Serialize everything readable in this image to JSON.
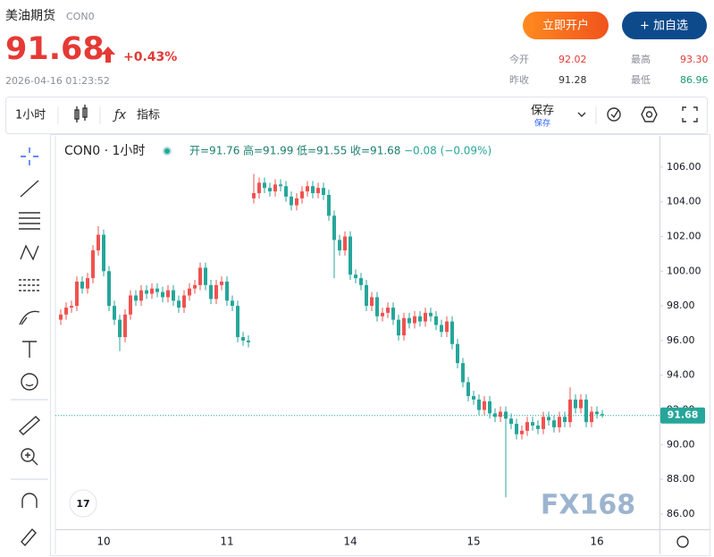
{
  "header": {
    "name": "美油期货",
    "code": "CON0",
    "price": "91.68",
    "change": "+0.43%",
    "time": "2026-04-16 01:23:52",
    "buttons": [
      "立即开户",
      "+ 加自选"
    ],
    "stats": [
      {
        "label": "今开",
        "value": "92.02"
      },
      {
        "label": "最高",
        "value": "93.30"
      },
      {
        "label": "昨收",
        "value": "91.28"
      },
      {
        "label": "最低",
        "value": "86.96"
      }
    ]
  },
  "toolbar": {
    "interval": "1小时",
    "indicators": "指标",
    "save": "保存",
    "save_sub": "保存"
  },
  "chart_data": {
    "type": "candlestick",
    "symbol": "CON0 · 1小时",
    "legend": [
      "开=91.76",
      "高=91.99",
      "低=91.55",
      "收=91.68",
      "−0.08 (−0.09%)"
    ],
    "watermark": "FX168",
    "categories": [
      null,
      null,
      null,
      null,
      null,
      null,
      null,
      null,
      "10",
      null,
      null,
      null,
      null,
      null,
      null,
      null,
      null,
      null,
      null,
      null,
      null,
      null,
      null,
      null,
      null,
      null,
      null,
      null,
      null,
      null,
      null,
      "11",
      null,
      null,
      null,
      null,
      null,
      null,
      null,
      null,
      null,
      null,
      null,
      null,
      null,
      null,
      null,
      null,
      null,
      null,
      null,
      null,
      null,
      null,
      "14",
      null,
      null,
      null,
      null,
      null,
      null,
      null,
      null,
      null,
      null,
      null,
      null,
      null,
      null,
      null,
      null,
      null,
      null,
      null,
      null,
      null,
      null,
      "15",
      null,
      null,
      null,
      null,
      null,
      null,
      null,
      null,
      null,
      null,
      null,
      null,
      null,
      null,
      null,
      null,
      null,
      null,
      null,
      null,
      null,
      null,
      "16",
      null
    ],
    "open": [
      97.2,
      97.5,
      97.9,
      98.0,
      99.4,
      99.0,
      99.6,
      101.2,
      102.1,
      100.0,
      98.0,
      97.2,
      96.2,
      97.5,
      98.6,
      98.3,
      98.9,
      98.7,
      99.0,
      98.8,
      98.5,
      98.9,
      98.3,
      97.9,
      98.6,
      99.0,
      99.2,
      100.2,
      99.2,
      98.4,
      99.2,
      99.4,
      98.3,
      98.0,
      96.2,
      96.0,
      104.2,
      104.5,
      105.1,
      104.8,
      104.6,
      105.0,
      104.9,
      104.3,
      103.8,
      104.2,
      104.6,
      104.9,
      104.5,
      104.8,
      104.4,
      103.2,
      101.8,
      101.2,
      102.0,
      99.8,
      99.6,
      99.2,
      98.0,
      98.5,
      97.4,
      97.6,
      97.9,
      97.2,
      96.3,
      97.3,
      97.0,
      97.4,
      97.1,
      97.6,
      97.4,
      96.9,
      96.5,
      97.1,
      95.8,
      94.7,
      93.6,
      92.8,
      92.6,
      92.0,
      92.5,
      91.8,
      91.6,
      91.9,
      91.5,
      91.2,
      90.6,
      90.8,
      91.3,
      91.1,
      90.9,
      91.6,
      91.4,
      91.0,
      91.6,
      91.3,
      92.6,
      92.1,
      92.6,
      91.3,
      91.9,
      91.76
    ],
    "high": [
      97.8,
      98.2,
      98.3,
      99.7,
      99.7,
      99.9,
      101.5,
      102.6,
      102.4,
      100.3,
      98.3,
      97.5,
      97.8,
      98.9,
      98.9,
      99.2,
      99.2,
      99.3,
      99.3,
      99.1,
      99.2,
      99.2,
      98.6,
      98.9,
      99.3,
      99.5,
      100.5,
      100.5,
      99.5,
      99.5,
      99.7,
      99.7,
      98.6,
      98.3,
      96.5,
      96.3,
      105.6,
      105.4,
      105.4,
      105.1,
      105.3,
      105.3,
      105.2,
      104.6,
      104.5,
      104.9,
      105.2,
      105.2,
      105.1,
      105.1,
      104.7,
      103.5,
      102.1,
      102.3,
      102.3,
      100.1,
      99.9,
      99.5,
      98.8,
      98.8,
      97.9,
      98.2,
      98.2,
      97.5,
      97.6,
      97.6,
      97.7,
      97.7,
      97.9,
      97.9,
      97.7,
      97.2,
      97.4,
      97.4,
      96.1,
      95.0,
      93.9,
      93.1,
      92.9,
      92.8,
      92.8,
      92.1,
      92.2,
      92.2,
      91.8,
      91.5,
      91.1,
      91.6,
      91.6,
      91.4,
      91.9,
      91.9,
      91.7,
      91.9,
      91.9,
      93.3,
      92.9,
      92.9,
      92.9,
      92.2,
      92.2,
      91.99
    ],
    "low": [
      96.9,
      97.2,
      97.6,
      97.7,
      98.7,
      98.7,
      99.3,
      100.9,
      99.7,
      97.7,
      96.9,
      95.4,
      95.9,
      97.2,
      98.0,
      98.0,
      98.4,
      98.4,
      98.5,
      98.2,
      98.2,
      98.0,
      97.6,
      97.6,
      98.3,
      98.7,
      98.9,
      98.9,
      98.1,
      98.1,
      98.9,
      98.0,
      97.7,
      95.9,
      95.7,
      95.6,
      103.9,
      104.2,
      104.5,
      104.3,
      104.3,
      104.6,
      104.0,
      103.5,
      103.5,
      103.9,
      104.3,
      104.2,
      104.2,
      104.1,
      102.9,
      99.6,
      100.9,
      100.9,
      99.5,
      99.3,
      98.9,
      97.7,
      97.7,
      97.1,
      97.1,
      97.3,
      96.9,
      96.0,
      96.0,
      96.7,
      96.7,
      96.8,
      96.8,
      97.1,
      96.6,
      96.2,
      96.2,
      95.5,
      94.4,
      93.3,
      92.5,
      92.3,
      91.7,
      91.7,
      91.5,
      91.3,
      91.3,
      86.96,
      90.9,
      90.3,
      90.3,
      90.5,
      90.8,
      90.6,
      90.6,
      91.1,
      90.7,
      90.7,
      91.0,
      91.0,
      91.8,
      91.8,
      91.0,
      91.0,
      91.5,
      91.55
    ],
    "close": [
      97.5,
      97.9,
      98.0,
      99.4,
      99.0,
      99.6,
      101.2,
      102.1,
      100.0,
      98.0,
      97.2,
      96.2,
      97.5,
      98.6,
      98.3,
      98.9,
      98.7,
      99.0,
      98.8,
      98.5,
      98.9,
      98.3,
      97.9,
      98.6,
      99.0,
      99.2,
      100.2,
      99.2,
      98.4,
      99.2,
      99.4,
      98.3,
      98.0,
      96.2,
      96.0,
      95.9,
      104.5,
      105.1,
      104.8,
      104.6,
      105.0,
      104.9,
      104.3,
      103.8,
      104.2,
      104.6,
      104.9,
      104.5,
      104.8,
      104.4,
      103.2,
      101.8,
      101.2,
      102.0,
      99.8,
      99.6,
      99.2,
      98.0,
      98.5,
      97.4,
      97.6,
      97.9,
      97.2,
      96.3,
      97.3,
      97.0,
      97.4,
      97.1,
      97.6,
      97.4,
      96.9,
      96.5,
      97.1,
      95.8,
      94.7,
      93.6,
      92.8,
      92.6,
      92.0,
      92.5,
      91.8,
      91.6,
      91.9,
      91.5,
      91.2,
      90.6,
      90.8,
      91.3,
      91.1,
      90.9,
      91.6,
      91.4,
      91.0,
      91.6,
      91.3,
      92.6,
      92.1,
      92.6,
      91.3,
      91.9,
      91.76,
      91.68
    ],
    "up_color": "#ef5350",
    "down_color": "#26a69a",
    "ylim": [
      85.12,
      107.8
    ],
    "yticks": [
      {
        "value": 86,
        "label": "86.00"
      },
      {
        "value": 88,
        "label": "88.00"
      },
      {
        "value": 90,
        "label": "90.00"
      },
      {
        "value": 92,
        "label": "92.00"
      },
      {
        "value": 94,
        "label": "94.00"
      },
      {
        "value": 96,
        "label": "96.00"
      },
      {
        "value": 98,
        "label": "98.00"
      },
      {
        "value": 100,
        "label": "100.00"
      },
      {
        "value": 102,
        "label": "102.00"
      },
      {
        "value": 104,
        "label": "104.00"
      },
      {
        "value": 106,
        "label": "106.00"
      }
    ],
    "last_price_line": true
  }
}
